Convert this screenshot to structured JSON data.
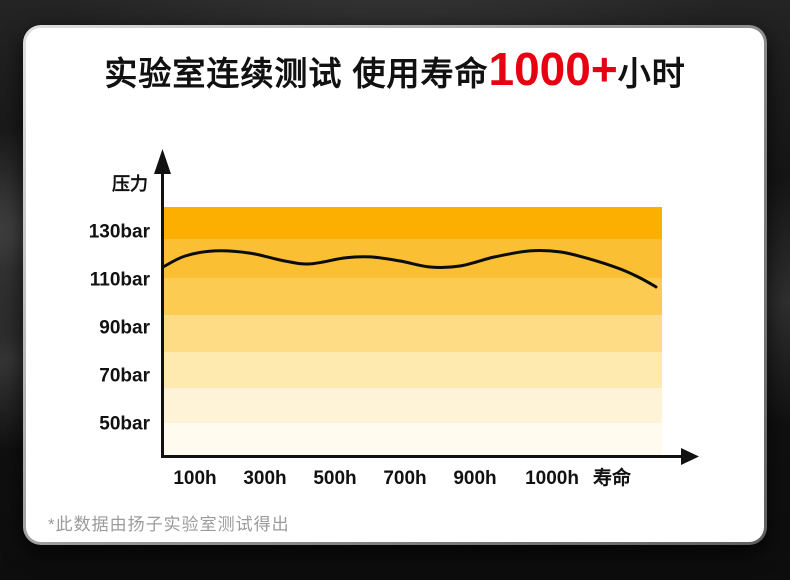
{
  "page": {
    "title": {
      "prefix": "实验室连续测试 使用寿命",
      "highlight": "1000+",
      "suffix": "小时",
      "highlight_color": "#e60012"
    },
    "footnote": "*此数据由扬子实验室测试得出"
  },
  "chart_data": {
    "type": "line",
    "title": "实验室连续测试 使用寿命1000+小时",
    "ylabel": "压力",
    "xlabel": "寿命",
    "x_tick_labels": [
      "100h",
      "300h",
      "500h",
      "700h",
      "900h",
      "1000h"
    ],
    "x_axis_end_label": "寿命",
    "y_tick_labels": [
      "130bar",
      "110bar",
      "90bar",
      "70bar",
      "50bar"
    ],
    "y_unit": "bar",
    "x_unit": "h",
    "ylim_bar": [
      40,
      140
    ],
    "grid": "horizontal color bands, orange fading to white toward low pressure",
    "legend": "none",
    "band_colors": [
      "#fcaf00",
      "#fbbf33",
      "#fccc52",
      "#fddc85",
      "#fee9ae",
      "#fef3d6",
      "#fffbef"
    ],
    "series": [
      {
        "name": "压力",
        "description": "pressure held ~115-122 bar across 1000h+ of continuous testing, tapering to ~107 bar at end of life",
        "points_x_fraction_bar": [
          [
            0.0,
            115.0
          ],
          [
            0.045,
            119.6
          ],
          [
            0.105,
            121.7
          ],
          [
            0.176,
            120.8
          ],
          [
            0.247,
            117.5
          ],
          [
            0.298,
            116.3
          ],
          [
            0.369,
            118.8
          ],
          [
            0.42,
            119.2
          ],
          [
            0.481,
            117.5
          ],
          [
            0.542,
            115.0
          ],
          [
            0.602,
            115.4
          ],
          [
            0.673,
            119.2
          ],
          [
            0.744,
            121.7
          ],
          [
            0.805,
            121.3
          ],
          [
            0.866,
            118.3
          ],
          [
            0.927,
            114.2
          ],
          [
            0.968,
            110.4
          ],
          [
            1.0,
            106.7
          ]
        ]
      }
    ]
  }
}
